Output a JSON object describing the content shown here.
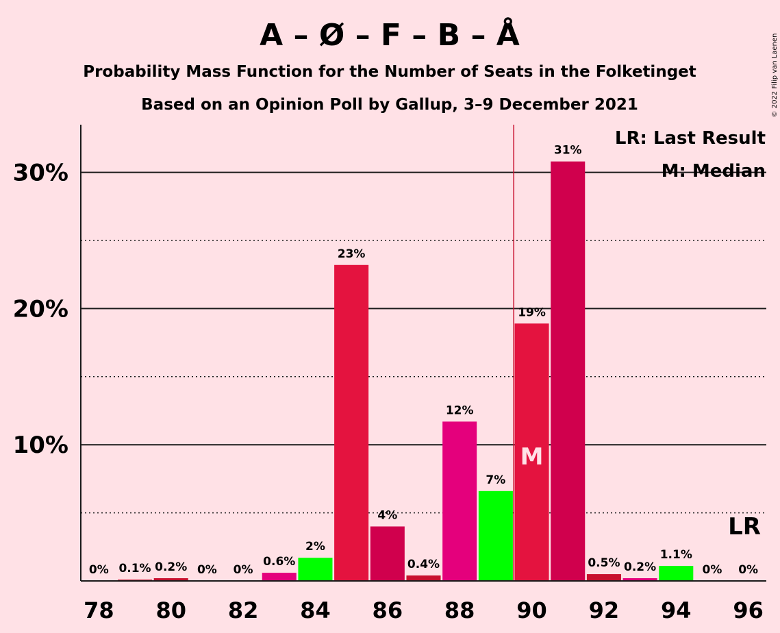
{
  "chart_data": {
    "type": "bar",
    "title": "A – Ø – F – B – Å",
    "subtitle1": "Probability Mass Function for the Number of Seats in the Folketinget",
    "subtitle2": "Based on an Opinion Poll by Gallup, 3–9 December 2021",
    "copyright": "© 2022 Filip van Laenen",
    "x": [
      78,
      79,
      80,
      81,
      82,
      83,
      84,
      85,
      86,
      87,
      88,
      89,
      90,
      91,
      92,
      93,
      94,
      95,
      96
    ],
    "values": [
      0,
      0.1,
      0.2,
      0,
      0,
      0.6,
      1.7,
      23.2,
      4.0,
      0.4,
      11.7,
      6.6,
      18.9,
      30.8,
      0.5,
      0.2,
      1.1,
      0,
      0
    ],
    "data_labels": [
      "0%",
      "0.1%",
      "0.2%",
      "0%",
      "0%",
      "0.6%",
      "2%",
      "23%",
      "4%",
      "0.4%",
      "12%",
      "7%",
      "19%",
      "31%",
      "0.5%",
      "0.2%",
      "1.1%",
      "0%",
      "0%"
    ],
    "bar_colors": [
      "#C8102E",
      "#C8102E",
      "#C8102E",
      "#C8102E",
      "#C8102E",
      "#E4007C",
      "#00FF00",
      "#E4133F",
      "#D0004D",
      "#C8102E",
      "#E4007C",
      "#00FF00",
      "#E4133F",
      "#D0004D",
      "#C8102E",
      "#E4007C",
      "#00FF00",
      "#C8102E",
      "#C8102E"
    ],
    "x_tick_labels": [
      "78",
      "80",
      "82",
      "84",
      "86",
      "88",
      "90",
      "92",
      "94",
      "96"
    ],
    "x_tick_values": [
      78,
      80,
      82,
      84,
      86,
      88,
      90,
      92,
      94,
      96
    ],
    "y_ticks": [
      {
        "value": 10,
        "label": "10%"
      },
      {
        "value": 20,
        "label": "20%"
      },
      {
        "value": 30,
        "label": "30%"
      }
    ],
    "y_minor_gridlines": [
      5,
      15,
      25
    ],
    "ylim": [
      0,
      33.5
    ],
    "xlim": [
      77.5,
      96.5
    ],
    "last_result_x": 89.5,
    "median_x": 90,
    "median_label": "M",
    "lr_label": "LR",
    "legend": [
      "LR: Last Result",
      "M: Median"
    ],
    "legend_position": "top-right",
    "grid": true
  }
}
